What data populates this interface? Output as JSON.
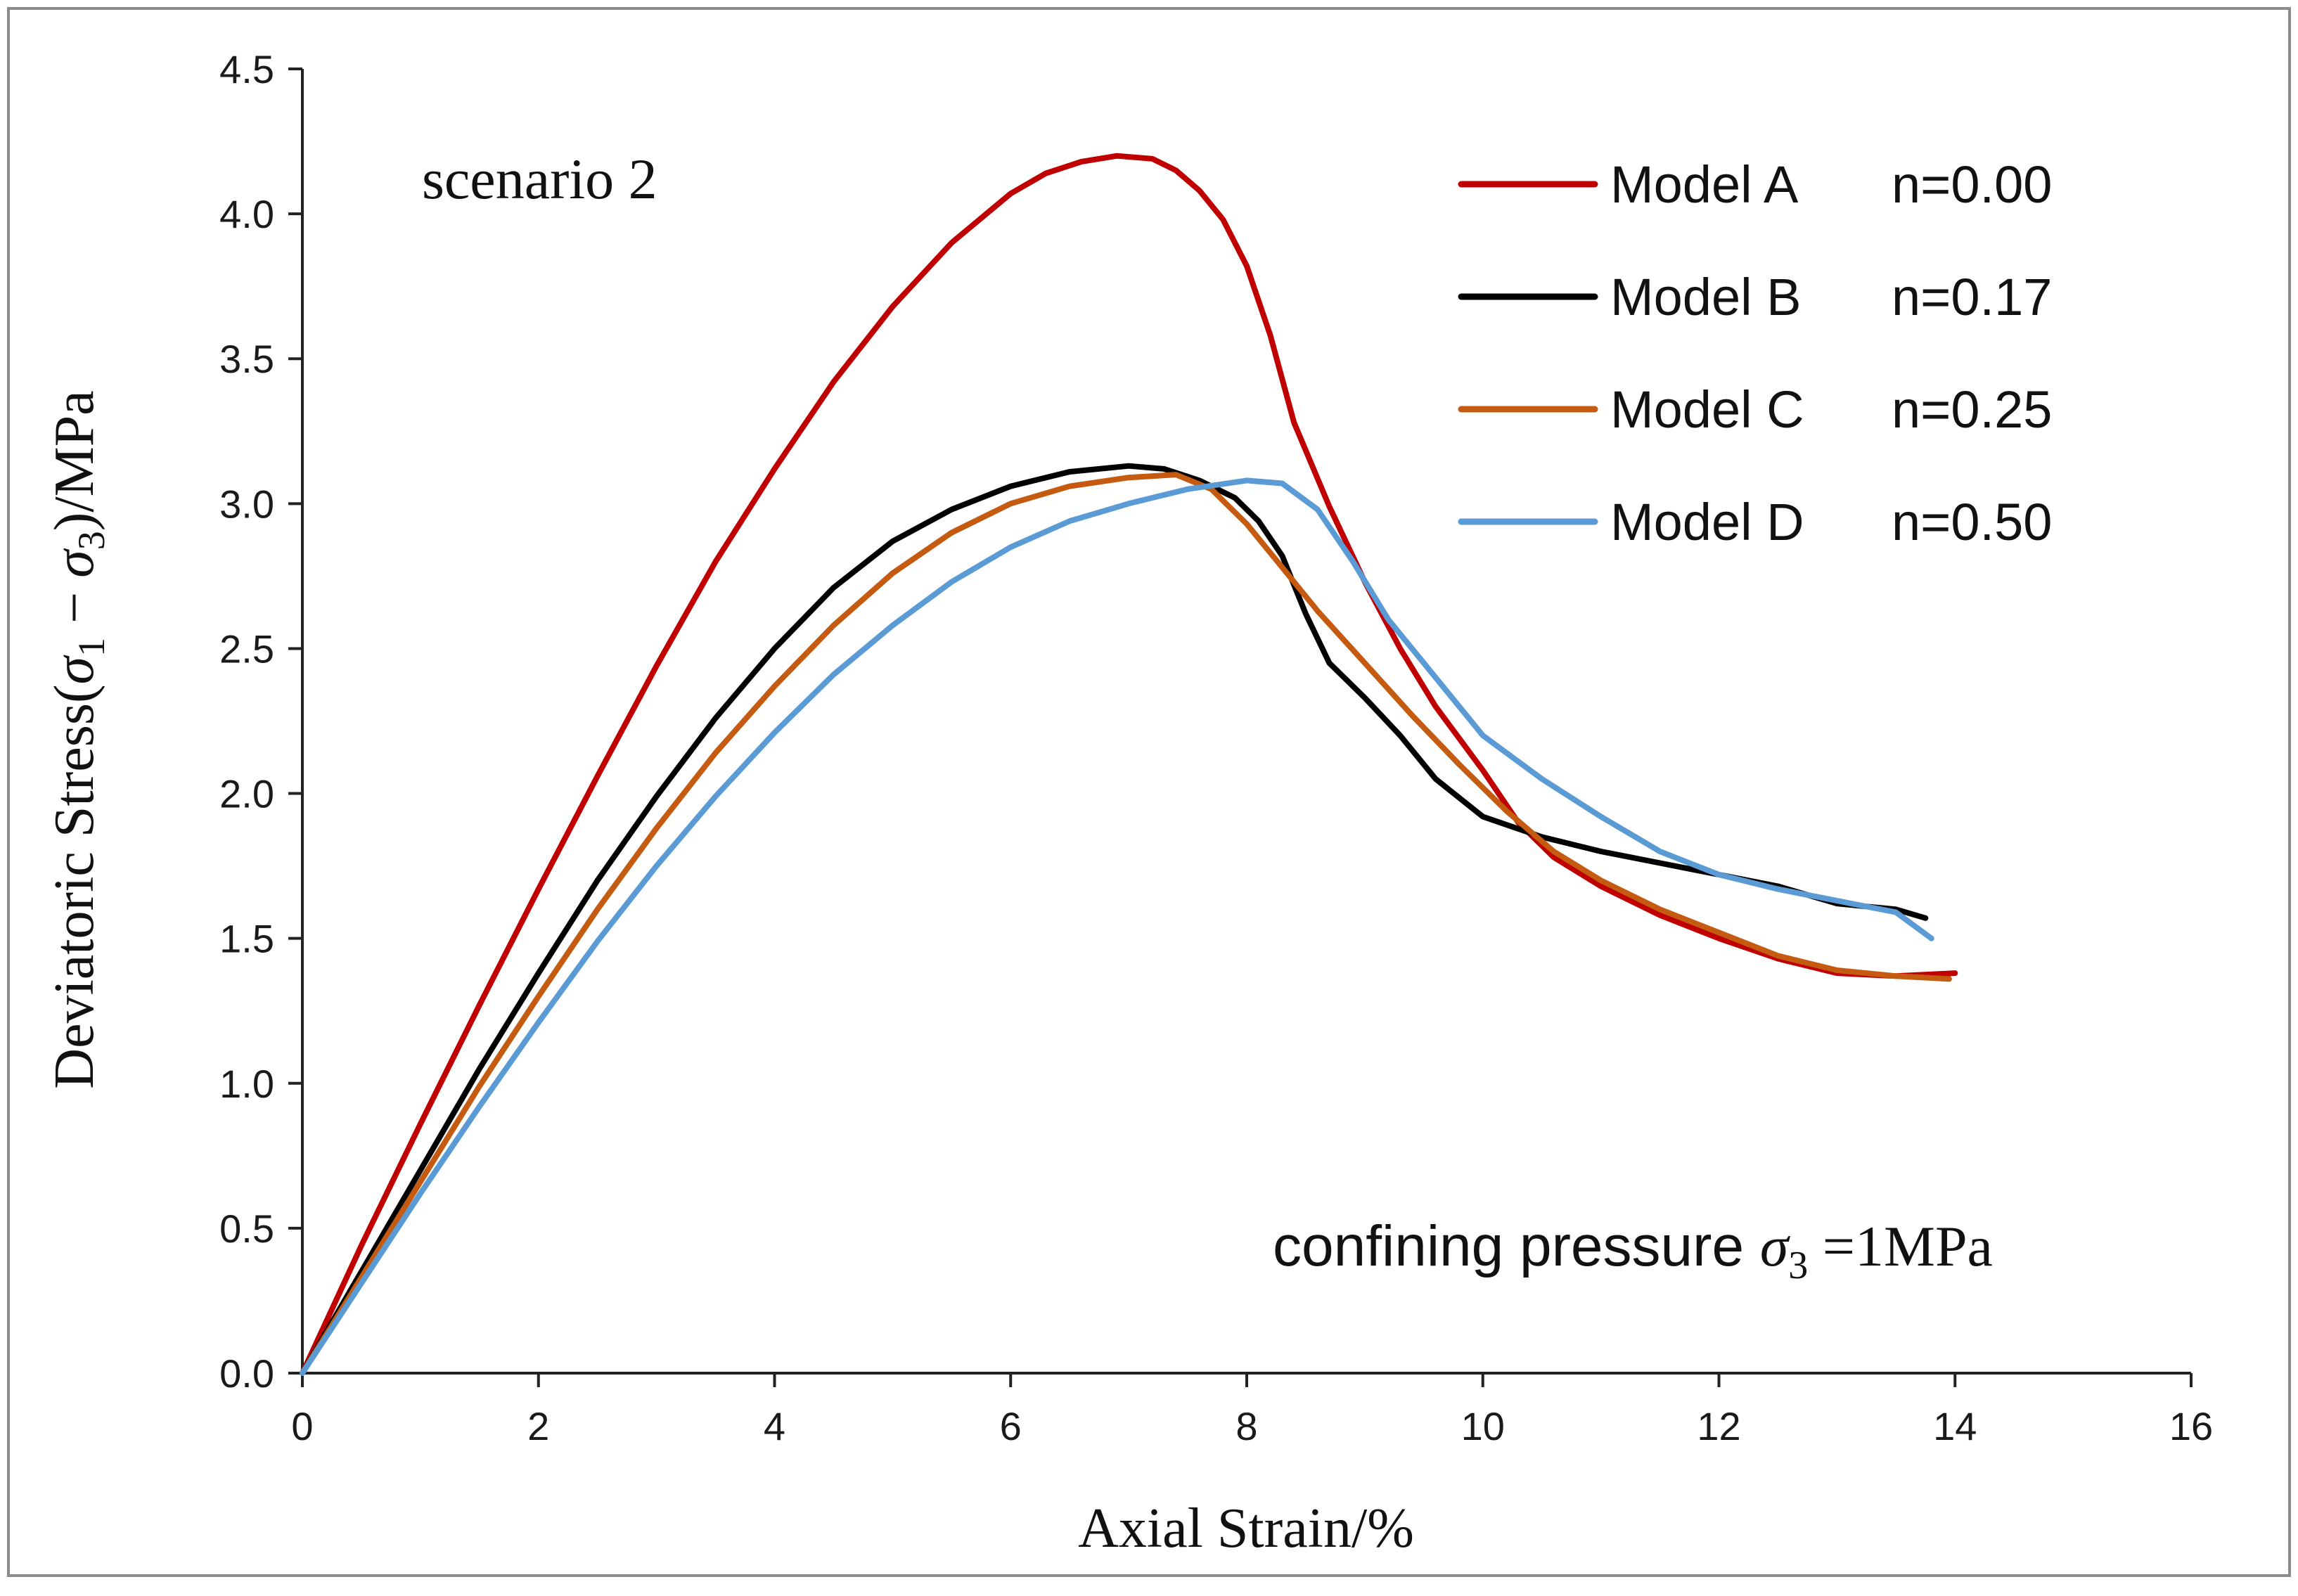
{
  "chart_data": {
    "type": "line",
    "title": "",
    "xlabel": "Axial Strain/%",
    "ylabel": {
      "prefix": "Deviatoric Stress(",
      "sym1": "σ",
      "sub1": "1",
      "minus": " − ",
      "sym2": "σ",
      "sub2": "3",
      "suffix": ")/MPa"
    },
    "xlim": [
      0,
      16
    ],
    "ylim": [
      0,
      4.5
    ],
    "xticks": [
      0,
      2,
      4,
      6,
      8,
      10,
      12,
      14,
      16
    ],
    "yticks": [
      0,
      0.5,
      1,
      1.5,
      2,
      2.5,
      3,
      3.5,
      4,
      4.5
    ],
    "xtick_labels": [
      "0",
      "2",
      "4",
      "6",
      "8",
      "10",
      "12",
      "14",
      "16"
    ],
    "ytick_labels": [
      "0.0",
      "0.5",
      "1.0",
      "1.5",
      "2.0",
      "2.5",
      "3.0",
      "3.5",
      "4.0",
      "4.5"
    ],
    "grid": false,
    "legend_position": "top-right",
    "annotations": {
      "scenario": "scenario 2",
      "confining_prefix": "confining pressure ",
      "confining_symbol": "σ",
      "confining_sub": "3",
      "confining_value": " =1MPa"
    },
    "series": [
      {
        "name": "Model A",
        "n_label": "n=0.00",
        "color": "#c00000",
        "x": [
          0,
          0.5,
          1,
          1.5,
          2,
          2.5,
          3,
          3.5,
          4,
          4.5,
          5,
          5.5,
          6,
          6.3,
          6.6,
          6.9,
          7.2,
          7.4,
          7.6,
          7.8,
          8.0,
          8.2,
          8.4,
          8.7,
          9.0,
          9.3,
          9.6,
          10.0,
          10.3,
          10.6,
          11.0,
          11.5,
          12.0,
          12.5,
          13.0,
          13.5,
          14.0
        ],
        "y": [
          0,
          0.44,
          0.86,
          1.27,
          1.67,
          2.06,
          2.44,
          2.8,
          3.12,
          3.42,
          3.68,
          3.9,
          4.07,
          4.14,
          4.18,
          4.2,
          4.19,
          4.15,
          4.08,
          3.98,
          3.82,
          3.58,
          3.28,
          2.99,
          2.73,
          2.5,
          2.3,
          2.08,
          1.9,
          1.78,
          1.68,
          1.58,
          1.5,
          1.43,
          1.38,
          1.37,
          1.38
        ]
      },
      {
        "name": "Model B",
        "n_label": "n=0.17",
        "color": "#000000",
        "x": [
          0,
          0.5,
          1,
          1.5,
          2,
          2.5,
          3,
          3.5,
          4,
          4.5,
          5,
          5.5,
          6,
          6.5,
          7,
          7.3,
          7.6,
          7.9,
          8.1,
          8.3,
          8.5,
          8.7,
          9.0,
          9.3,
          9.6,
          10.0,
          10.5,
          11.0,
          11.5,
          12.0,
          12.5,
          13.0,
          13.5,
          13.75
        ],
        "y": [
          0,
          0.35,
          0.7,
          1.05,
          1.38,
          1.7,
          1.99,
          2.26,
          2.5,
          2.71,
          2.87,
          2.98,
          3.06,
          3.11,
          3.13,
          3.12,
          3.08,
          3.02,
          2.94,
          2.82,
          2.62,
          2.45,
          2.33,
          2.2,
          2.05,
          1.92,
          1.85,
          1.8,
          1.76,
          1.72,
          1.68,
          1.62,
          1.6,
          1.57
        ]
      },
      {
        "name": "Model C",
        "n_label": "n=0.25",
        "color": "#c55a11",
        "x": [
          0,
          0.5,
          1,
          1.5,
          2,
          2.5,
          3,
          3.5,
          4,
          4.5,
          5,
          5.5,
          6,
          6.5,
          7,
          7.4,
          7.7,
          8.0,
          8.3,
          8.6,
          9.0,
          9.4,
          9.8,
          10.2,
          10.6,
          11.0,
          11.5,
          12.0,
          12.5,
          13.0,
          13.5,
          13.95
        ],
        "y": [
          0,
          0.33,
          0.66,
          0.99,
          1.3,
          1.6,
          1.88,
          2.14,
          2.37,
          2.58,
          2.76,
          2.9,
          3.0,
          3.06,
          3.09,
          3.1,
          3.05,
          2.93,
          2.78,
          2.63,
          2.45,
          2.27,
          2.1,
          1.94,
          1.8,
          1.7,
          1.6,
          1.52,
          1.44,
          1.39,
          1.37,
          1.36
        ]
      },
      {
        "name": "Model D",
        "n_label": "n=0.50",
        "color": "#5b9bd5",
        "x": [
          0,
          0.5,
          1,
          1.5,
          2,
          2.5,
          3,
          3.5,
          4,
          4.5,
          5,
          5.5,
          6,
          6.5,
          7,
          7.5,
          8.0,
          8.3,
          8.6,
          8.9,
          9.2,
          9.6,
          10.0,
          10.5,
          11.0,
          11.5,
          12.0,
          12.5,
          13.0,
          13.5,
          13.8
        ],
        "y": [
          0,
          0.31,
          0.62,
          0.92,
          1.21,
          1.49,
          1.75,
          1.99,
          2.21,
          2.41,
          2.58,
          2.73,
          2.85,
          2.94,
          3.0,
          3.05,
          3.08,
          3.07,
          2.98,
          2.8,
          2.6,
          2.4,
          2.2,
          2.05,
          1.92,
          1.8,
          1.72,
          1.67,
          1.63,
          1.59,
          1.5
        ]
      }
    ]
  }
}
